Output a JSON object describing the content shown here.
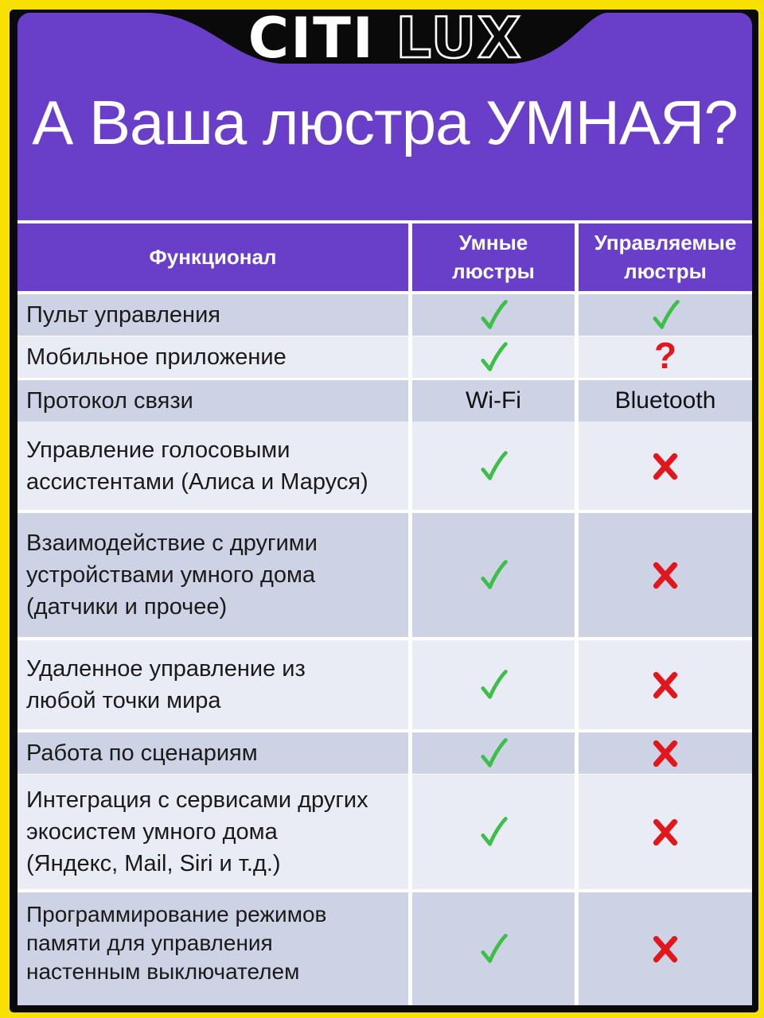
{
  "logo": {
    "part1": "CITI",
    "part2": "LUX"
  },
  "title": "А Ваша люстра УМНАЯ?",
  "table": {
    "headers": [
      "Функционал",
      "Умные люстры",
      "Управляемые люстры"
    ],
    "rows": [
      {
        "label": "Пульт управления",
        "smart": "check-icon",
        "managed": "check-icon"
      },
      {
        "label": "Мобильное приложение",
        "smart": "check-icon",
        "managed": "question-mark"
      },
      {
        "label": "Протокол связи",
        "smart": "Wi-Fi",
        "managed": "Bluetooth"
      },
      {
        "label": "Управление голосовыми\nассистентами (Алиса и Маруся)",
        "smart": "check-icon",
        "managed": "cross-icon"
      },
      {
        "label": "Взаимодействие с другими\nустройствами умного дома\n(датчики и прочее)",
        "smart": "check-icon",
        "managed": "cross-icon"
      },
      {
        "label": "Удаленное управление из\nлюбой точки мира",
        "smart": "check-icon",
        "managed": "cross-icon"
      },
      {
        "label": "Работа по сценариям",
        "smart": "check-icon",
        "managed": "cross-icon"
      },
      {
        "label": "Интеграция с сервисами других\nэкосистем умного дома\n(Яндекс, Mail, Siri и т.д.)",
        "smart": "check-icon",
        "managed": "cross-icon"
      },
      {
        "label": "Программирование режимов\nпамяти для управления\nнастенным выключателем",
        "smart": "check-icon",
        "managed": "cross-icon"
      }
    ]
  },
  "colors": {
    "purple": "#693FC9",
    "yellow": "#F8E003",
    "row_dark": "#CDD3E5",
    "row_light": "#EAECF5",
    "green": "#3DBE49",
    "red": "#E2171B",
    "text": "#1A1A1A"
  }
}
